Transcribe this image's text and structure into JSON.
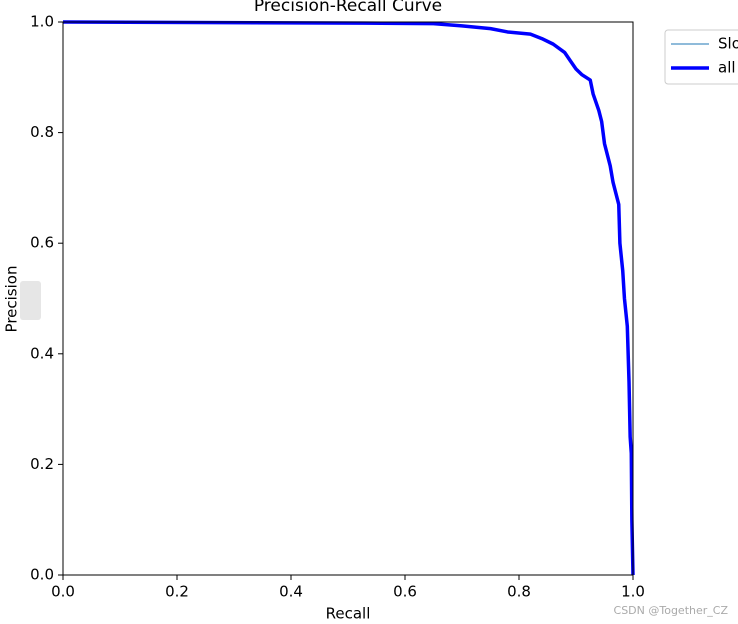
{
  "chart_data": {
    "type": "line",
    "title": "Precision-Recall Curve",
    "x_label": "Recall",
    "y_label": "Precision",
    "x": [
      0,
      0.53,
      0.65,
      0.7,
      0.75,
      0.78,
      0.82,
      0.84,
      0.86,
      0.88,
      0.89,
      0.9,
      0.91,
      0.925,
      0.93,
      0.94,
      0.945,
      0.95,
      0.96,
      0.965,
      0.975,
      0.977,
      0.982,
      0.985,
      0.99,
      0.993,
      0.995,
      0.997,
      0.998,
      1.0
    ],
    "series": [
      {
        "name": "Slo",
        "color": "#1f77b4",
        "width": 1,
        "values": [
          1.0,
          0.998,
          0.997,
          0.993,
          0.988,
          0.982,
          0.978,
          0.97,
          0.96,
          0.945,
          0.93,
          0.915,
          0.905,
          0.895,
          0.87,
          0.84,
          0.82,
          0.78,
          0.74,
          0.71,
          0.67,
          0.6,
          0.55,
          0.5,
          0.45,
          0.35,
          0.25,
          0.22,
          0.1,
          0.0
        ]
      },
      {
        "name": "all",
        "color": "#0000ff",
        "width": 3.5,
        "values": [
          1.0,
          0.998,
          0.997,
          0.993,
          0.988,
          0.982,
          0.978,
          0.97,
          0.96,
          0.945,
          0.93,
          0.915,
          0.905,
          0.895,
          0.87,
          0.84,
          0.82,
          0.78,
          0.74,
          0.71,
          0.67,
          0.6,
          0.55,
          0.5,
          0.45,
          0.35,
          0.25,
          0.22,
          0.1,
          0.0
        ]
      }
    ],
    "xlim": [
      0,
      1
    ],
    "ylim": [
      0,
      1
    ],
    "xticks": [
      {
        "value": 0,
        "label": "0.0"
      },
      0.2,
      0.4,
      0.6,
      0.8,
      {
        "value": 1,
        "label": "1.0"
      }
    ],
    "yticks": [
      {
        "value": 0,
        "label": "0.0"
      },
      0.2,
      0.4,
      0.6,
      0.8,
      {
        "value": 1,
        "label": "1.0"
      }
    ],
    "grid": false,
    "legend": "outside-upper-right",
    "watermark": "CSDN @Together_CZ"
  }
}
